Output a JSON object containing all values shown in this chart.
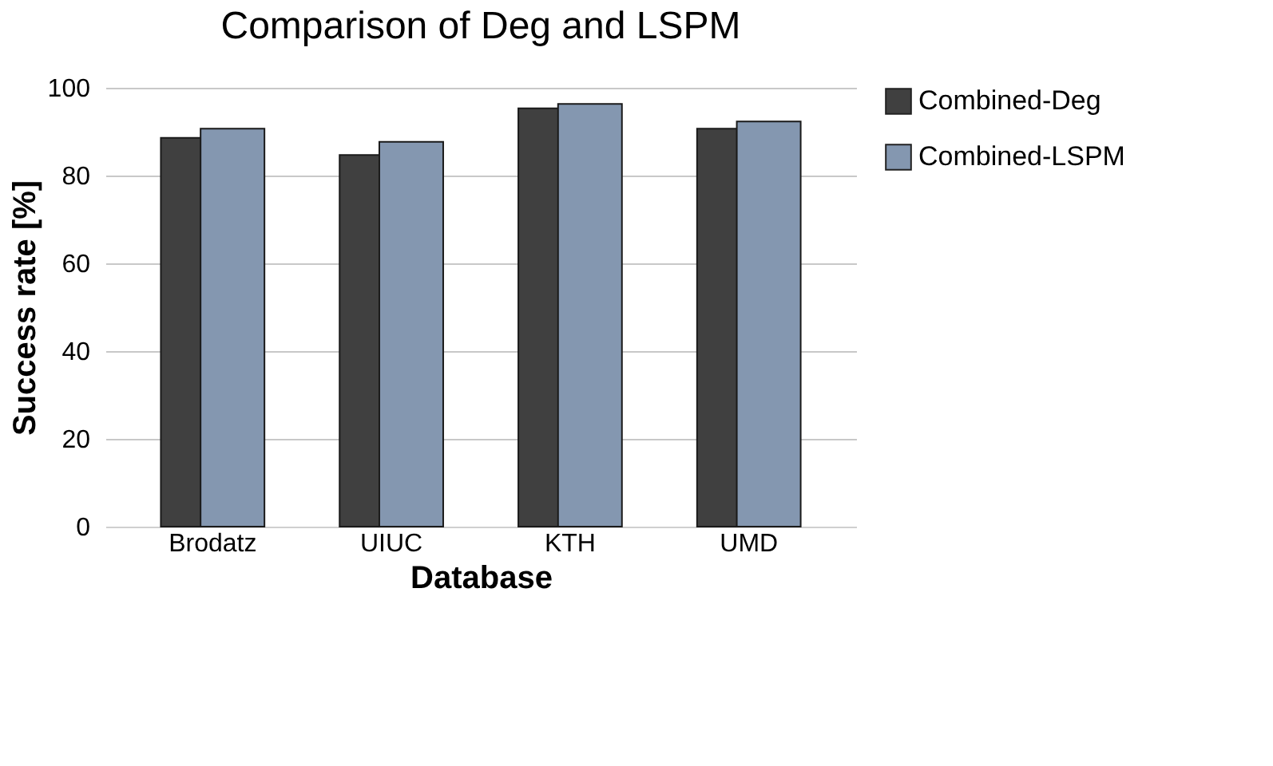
{
  "chart_data": {
    "type": "bar",
    "title": "Comparison of Deg and LSPM",
    "xlabel": "Database",
    "ylabel": "Success rate [%]",
    "categories": [
      "Brodatz",
      "UIUC",
      "KTH",
      "UMD"
    ],
    "series": [
      {
        "name": "Combined-Deg",
        "color": "#404040",
        "values": [
          88.6,
          84.7,
          95.3,
          90.7
        ]
      },
      {
        "name": "Combined-LSPM",
        "color": "#8497b0",
        "values": [
          90.7,
          87.7,
          96.3,
          92.3
        ]
      }
    ],
    "ylim": [
      0,
      100
    ],
    "yticks": [
      0,
      20,
      40,
      60,
      80,
      100
    ],
    "grid": "y",
    "legend": "right"
  }
}
